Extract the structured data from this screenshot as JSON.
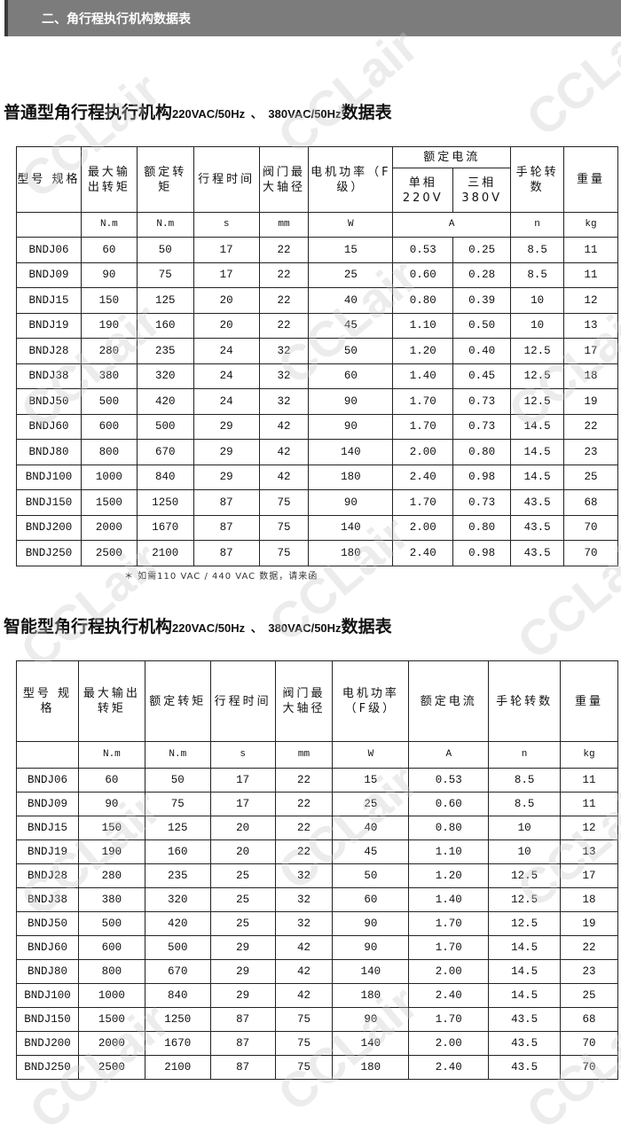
{
  "section_title": "二、角行程执行机构数据表",
  "watermark": "CCLair",
  "table1": {
    "title_cn": "普通型角行程执行机构",
    "title_v1": "220VAC/50Hz",
    "title_sep": "、",
    "title_v2": "380VAC/50Hz",
    "title_end": "数据表",
    "headers": [
      "型号 规格",
      "最大输出转矩",
      "额定转矩",
      "行程时间",
      "阀门最大轴径",
      "电机功率（F级）",
      "额定电流",
      "单相 220V",
      "三相 380V",
      "手轮转数",
      "重量"
    ],
    "units": [
      "N.m",
      "N.m",
      "s",
      "mm",
      "W",
      "A",
      "n",
      "kg"
    ],
    "rows": [
      [
        "BNDJ06",
        "60",
        "50",
        "17",
        "22",
        "15",
        "0.53",
        "0.25",
        "8.5",
        "11"
      ],
      [
        "BNDJ09",
        "90",
        "75",
        "17",
        "22",
        "25",
        "0.60",
        "0.28",
        "8.5",
        "11"
      ],
      [
        "BNDJ15",
        "150",
        "125",
        "20",
        "22",
        "40",
        "0.80",
        "0.39",
        "10",
        "12"
      ],
      [
        "BNDJ19",
        "190",
        "160",
        "20",
        "22",
        "45",
        "1.10",
        "0.50",
        "10",
        "13"
      ],
      [
        "BNDJ28",
        "280",
        "235",
        "24",
        "32",
        "50",
        "1.20",
        "0.40",
        "12.5",
        "17"
      ],
      [
        "BNDJ38",
        "380",
        "320",
        "24",
        "32",
        "60",
        "1.40",
        "0.45",
        "12.5",
        "18"
      ],
      [
        "BNDJ50",
        "500",
        "420",
        "24",
        "32",
        "90",
        "1.70",
        "0.73",
        "12.5",
        "19"
      ],
      [
        "BNDJ60",
        "600",
        "500",
        "29",
        "42",
        "90",
        "1.70",
        "0.73",
        "14.5",
        "22"
      ],
      [
        "BNDJ80",
        "800",
        "670",
        "29",
        "42",
        "140",
        "2.00",
        "0.80",
        "14.5",
        "23"
      ],
      [
        "BNDJ100",
        "1000",
        "840",
        "29",
        "42",
        "180",
        "2.40",
        "0.98",
        "14.5",
        "25"
      ],
      [
        "BNDJ150",
        "1500",
        "1250",
        "87",
        "75",
        "90",
        "1.70",
        "0.73",
        "43.5",
        "68"
      ],
      [
        "BNDJ200",
        "2000",
        "1670",
        "87",
        "75",
        "140",
        "2.00",
        "0.80",
        "43.5",
        "70"
      ],
      [
        "BNDJ250",
        "2500",
        "2100",
        "87",
        "75",
        "180",
        "2.40",
        "0.98",
        "43.5",
        "70"
      ]
    ],
    "note": "＊  如需110 VAC / 440 VAC 数据，请来函"
  },
  "table2": {
    "title_cn": "智能型角行程执行机构",
    "title_v1": "220VAC/50Hz",
    "title_sep": "、",
    "title_v2": "380VAC/50Hz",
    "title_end": "数据表",
    "headers": [
      "型号 规格",
      "最大输出转矩",
      "额定转矩",
      "行程时间",
      "阀门最大轴径",
      "电机功率（F级）",
      "额定电流",
      "手轮转数",
      "重量"
    ],
    "units": [
      "N.m",
      "N.m",
      "s",
      "mm",
      "W",
      "A",
      "n",
      "kg"
    ],
    "rows": [
      [
        "BNDJ06",
        "60",
        "50",
        "17",
        "22",
        "15",
        "0.53",
        "8.5",
        "11"
      ],
      [
        "BNDJ09",
        "90",
        "75",
        "17",
        "22",
        "25",
        "0.60",
        "8.5",
        "11"
      ],
      [
        "BNDJ15",
        "150",
        "125",
        "20",
        "22",
        "40",
        "0.80",
        "10",
        "12"
      ],
      [
        "BNDJ19",
        "190",
        "160",
        "20",
        "22",
        "45",
        "1.10",
        "10",
        "13"
      ],
      [
        "BNDJ28",
        "280",
        "235",
        "25",
        "32",
        "50",
        "1.20",
        "12.5",
        "17"
      ],
      [
        "BNDJ38",
        "380",
        "320",
        "25",
        "32",
        "60",
        "1.40",
        "12.5",
        "18"
      ],
      [
        "BNDJ50",
        "500",
        "420",
        "25",
        "32",
        "90",
        "1.70",
        "12.5",
        "19"
      ],
      [
        "BNDJ60",
        "600",
        "500",
        "29",
        "42",
        "90",
        "1.70",
        "14.5",
        "22"
      ],
      [
        "BNDJ80",
        "800",
        "670",
        "29",
        "42",
        "140",
        "2.00",
        "14.5",
        "23"
      ],
      [
        "BNDJ100",
        "1000",
        "840",
        "29",
        "42",
        "180",
        "2.40",
        "14.5",
        "25"
      ],
      [
        "BNDJ150",
        "1500",
        "1250",
        "87",
        "75",
        "90",
        "1.70",
        "43.5",
        "68"
      ],
      [
        "BNDJ200",
        "2000",
        "1670",
        "87",
        "75",
        "140",
        "2.00",
        "43.5",
        "70"
      ],
      [
        "BNDJ250",
        "2500",
        "2100",
        "87",
        "75",
        "180",
        "2.40",
        "43.5",
        "70"
      ]
    ]
  }
}
